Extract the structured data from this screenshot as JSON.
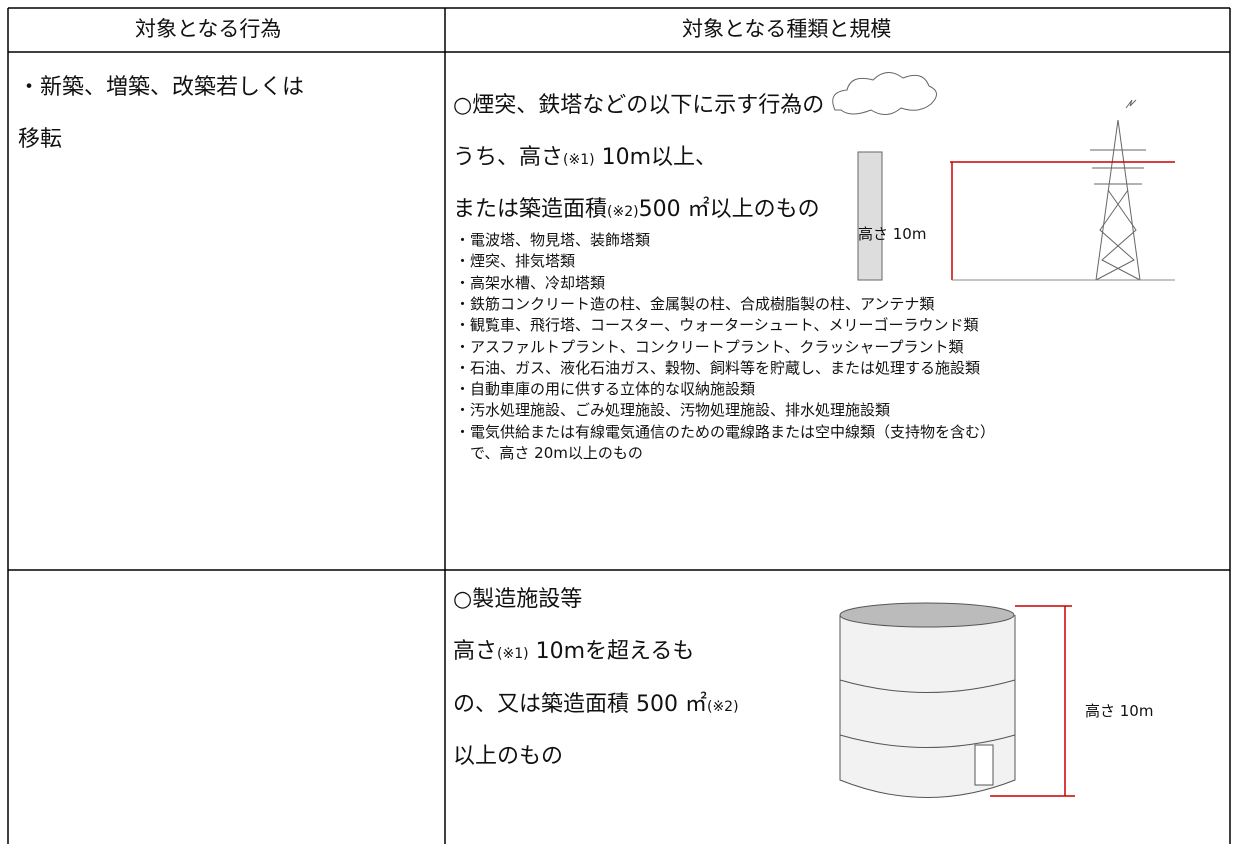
{
  "table": {
    "header": [
      "対象となる行為",
      "対象となる種類と規模"
    ],
    "rows": [
      {
        "action": [
          "・新築、増築、改築若しくは",
          "移転"
        ],
        "scope": {
          "lines": [
            [
              "○煙突、鉄塔などの以下に示す行為の"
            ],
            [
              "うち、高さ",
              "(※1)",
              " 10m以上、"
            ],
            [
              "または築造面積",
              "(※2)",
              "500 ㎡以上のもの"
            ]
          ],
          "items": [
            "・電波塔、物見塔、装飾塔類",
            "・煙突、排気塔類",
            "・高架水槽、冷却塔類",
            "・鉄筋コンクリート造の柱、金属製の柱、合成樹脂製の柱、アンテナ類",
            "・観覧車、飛行塔、コースター、ウォーターシュート、メリーゴーラウンド類",
            "・アスファルトプラント、コンクリートプラント、クラッシャープラント類",
            "・石油、ガス、液化石油ガス、穀物、飼料等を貯蔵し、または処理する施設類",
            "・自動車庫の用に供する立体的な収納施設類",
            "・汚水処理施設、ごみ処理施設、汚物処理施設、排水処理施設類",
            "・電気供給または有線電気通信のための電線路または空中線類（支持物を含む）",
            "　で、高さ 20m以上のもの"
          ],
          "figure_label": "高さ 10m"
        }
      },
      {
        "action": [],
        "scope": {
          "lines": [
            [
              "○製造施設等"
            ],
            [
              "高さ",
              "(※1)",
              " 10mを超えるも"
            ],
            [
              "の、又は築造面積 500 ㎡",
              "(※2)"
            ],
            [
              "以上のもの"
            ]
          ],
          "figure_label": "高さ 10m"
        }
      }
    ]
  }
}
